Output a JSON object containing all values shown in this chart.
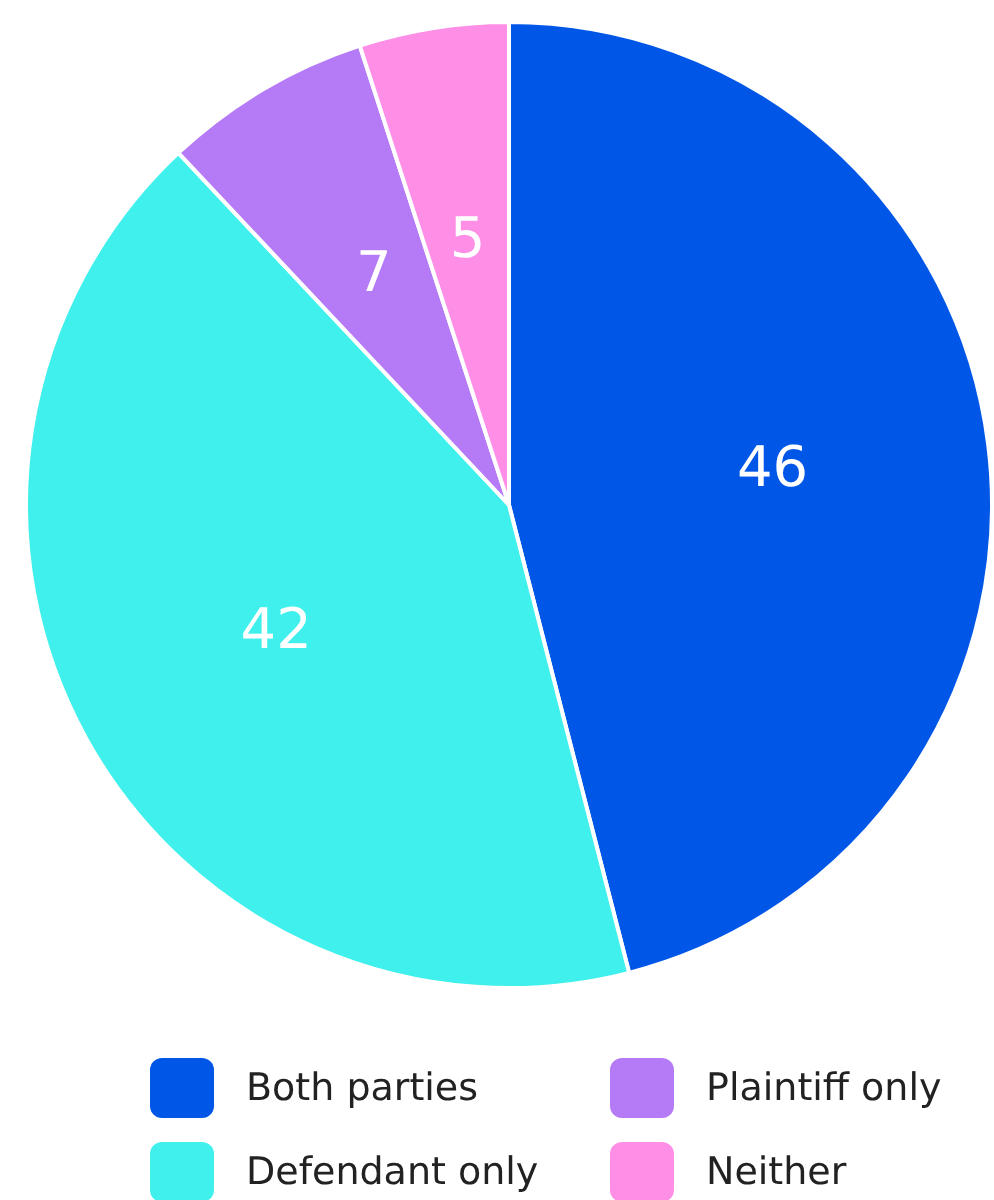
{
  "chart_data": {
    "type": "pie",
    "categories": [
      "Both parties",
      "Defendant only",
      "Plaintiff only",
      "Neither"
    ],
    "values": [
      46,
      42,
      7,
      5
    ],
    "colors": [
      "#0057e7",
      "#3ff0ec",
      "#b57bf7",
      "#ff8ee6"
    ],
    "data_labels": true,
    "legend": "bottom"
  }
}
